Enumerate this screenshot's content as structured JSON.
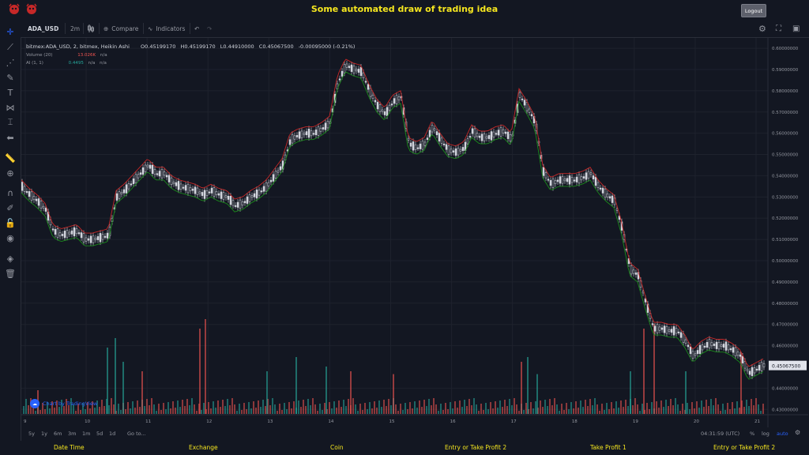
{
  "header": {
    "title": "Some automated draw of trading idea",
    "logout_label": "Logout"
  },
  "toolbar": {
    "symbol": "ADA_USD",
    "interval": "2m",
    "compare_label": "Compare",
    "indicators_label": "Indicators"
  },
  "legend": {
    "main": "bitmex:ADA_USD, 2, bitmex, Heikin Ashi",
    "open": "O0.45199170",
    "high": "H0.45199170",
    "low": "L0.44910000",
    "close": "C0.45067500",
    "change": "-0.00095000 (-0.21%)",
    "volume_label": "Volume (20)",
    "volume_value": "13.026K",
    "volume_na": "n/a",
    "ai_label": "AI (1, 1)",
    "ai_value": "0.4495",
    "ai_na1": "n/a",
    "ai_na2": "n/a"
  },
  "tv_logo": "Chart by TradingView",
  "range_bar": {
    "buttons": [
      "5y",
      "1y",
      "6m",
      "3m",
      "1m",
      "5d",
      "1d"
    ],
    "goto": "Go to...",
    "time": "04:31:59 (UTC)",
    "percent": "%",
    "log": "log",
    "auto": "auto"
  },
  "bottom_tabs": [
    "Date Time",
    "Exchange",
    "Coin",
    "Entry or Take Profit 2",
    "Take Profit 1",
    "Entry or Take Profit 2"
  ],
  "colors": {
    "background": "#131722",
    "title": "#f5e61f",
    "up_volume": "#26a69a",
    "down_volume": "#ef5350",
    "upper_band": "#c62828",
    "lower_band": "#1b8a1b"
  },
  "chart_data": {
    "type": "candlestick",
    "price_axis_ticks": [
      "0.60000000",
      "0.59000000",
      "0.58000000",
      "0.57000000",
      "0.56000000",
      "0.55000000",
      "0.54000000",
      "0.53000000",
      "0.52000000",
      "0.51000000",
      "0.50000000",
      "0.49000000",
      "0.48000000",
      "0.47000000",
      "0.46000000",
      "0.45067500",
      "0.44000000",
      "0.43000000"
    ],
    "last_price_label": "0.45067500",
    "ylim": [
      0.4275,
      0.603
    ],
    "time_axis_ticks": [
      "9",
      "10",
      "11",
      "12",
      "13",
      "14",
      "15",
      "16",
      "17",
      "18",
      "19",
      "20",
      "21"
    ],
    "price_path": [
      [
        0,
        0.535
      ],
      [
        10,
        0.531
      ],
      [
        20,
        0.528
      ],
      [
        30,
        0.524
      ],
      [
        40,
        0.514
      ],
      [
        50,
        0.512
      ],
      [
        60,
        0.513
      ],
      [
        70,
        0.514
      ],
      [
        80,
        0.51
      ],
      [
        90,
        0.51
      ],
      [
        100,
        0.511
      ],
      [
        110,
        0.512
      ],
      [
        120,
        0.53
      ],
      [
        130,
        0.533
      ],
      [
        140,
        0.537
      ],
      [
        150,
        0.541
      ],
      [
        160,
        0.545
      ],
      [
        170,
        0.541
      ],
      [
        180,
        0.541
      ],
      [
        190,
        0.537
      ],
      [
        200,
        0.535
      ],
      [
        210,
        0.534
      ],
      [
        220,
        0.533
      ],
      [
        230,
        0.531
      ],
      [
        240,
        0.533
      ],
      [
        250,
        0.531
      ],
      [
        260,
        0.53
      ],
      [
        270,
        0.526
      ],
      [
        280,
        0.527
      ],
      [
        290,
        0.53
      ],
      [
        300,
        0.532
      ],
      [
        310,
        0.535
      ],
      [
        320,
        0.54
      ],
      [
        330,
        0.545
      ],
      [
        340,
        0.557
      ],
      [
        350,
        0.559
      ],
      [
        360,
        0.56
      ],
      [
        370,
        0.56
      ],
      [
        380,
        0.562
      ],
      [
        390,
        0.565
      ],
      [
        400,
        0.584
      ],
      [
        410,
        0.592
      ],
      [
        420,
        0.59
      ],
      [
        430,
        0.589
      ],
      [
        440,
        0.58
      ],
      [
        450,
        0.573
      ],
      [
        460,
        0.569
      ],
      [
        470,
        0.575
      ],
      [
        480,
        0.577
      ],
      [
        490,
        0.555
      ],
      [
        500,
        0.553
      ],
      [
        510,
        0.555
      ],
      [
        520,
        0.563
      ],
      [
        530,
        0.557
      ],
      [
        540,
        0.552
      ],
      [
        550,
        0.551
      ],
      [
        560,
        0.553
      ],
      [
        570,
        0.561
      ],
      [
        580,
        0.558
      ],
      [
        590,
        0.558
      ],
      [
        600,
        0.56
      ],
      [
        610,
        0.561
      ],
      [
        620,
        0.557
      ],
      [
        630,
        0.578
      ],
      [
        640,
        0.572
      ],
      [
        650,
        0.565
      ],
      [
        660,
        0.542
      ],
      [
        670,
        0.536
      ],
      [
        680,
        0.538
      ],
      [
        690,
        0.538
      ],
      [
        700,
        0.538
      ],
      [
        710,
        0.539
      ],
      [
        720,
        0.541
      ],
      [
        730,
        0.535
      ],
      [
        740,
        0.531
      ],
      [
        750,
        0.528
      ],
      [
        760,
        0.515
      ],
      [
        770,
        0.496
      ],
      [
        780,
        0.493
      ],
      [
        790,
        0.48
      ],
      [
        800,
        0.468
      ],
      [
        810,
        0.468
      ],
      [
        820,
        0.467
      ],
      [
        830,
        0.467
      ],
      [
        840,
        0.462
      ],
      [
        850,
        0.455
      ],
      [
        860,
        0.459
      ],
      [
        870,
        0.461
      ],
      [
        880,
        0.46
      ],
      [
        890,
        0.46
      ],
      [
        900,
        0.458
      ],
      [
        910,
        0.455
      ],
      [
        920,
        0.447
      ],
      [
        930,
        0.449
      ],
      [
        940,
        0.451
      ]
    ],
    "volume": [
      {
        "x": 20,
        "v": 0.25,
        "up": false
      },
      {
        "x": 108,
        "v": 0.7,
        "up": true
      },
      {
        "x": 118,
        "v": 0.8,
        "up": true
      },
      {
        "x": 128,
        "v": 0.55,
        "up": true
      },
      {
        "x": 152,
        "v": 0.45,
        "up": false
      },
      {
        "x": 225,
        "v": 0.9,
        "up": false
      },
      {
        "x": 232,
        "v": 1.0,
        "up": false
      },
      {
        "x": 310,
        "v": 0.45,
        "up": true
      },
      {
        "x": 347,
        "v": 0.6,
        "up": true
      },
      {
        "x": 385,
        "v": 0.5,
        "up": true
      },
      {
        "x": 416,
        "v": 0.45,
        "up": false
      },
      {
        "x": 470,
        "v": 0.42,
        "up": false
      },
      {
        "x": 632,
        "v": 0.55,
        "up": false
      },
      {
        "x": 640,
        "v": 0.6,
        "up": true
      },
      {
        "x": 652,
        "v": 0.42,
        "up": true
      },
      {
        "x": 770,
        "v": 0.45,
        "up": true
      },
      {
        "x": 787,
        "v": 0.9,
        "up": false
      },
      {
        "x": 800,
        "v": 0.95,
        "up": false
      },
      {
        "x": 840,
        "v": 0.45,
        "up": true
      },
      {
        "x": 910,
        "v": 0.65,
        "up": false
      }
    ]
  }
}
